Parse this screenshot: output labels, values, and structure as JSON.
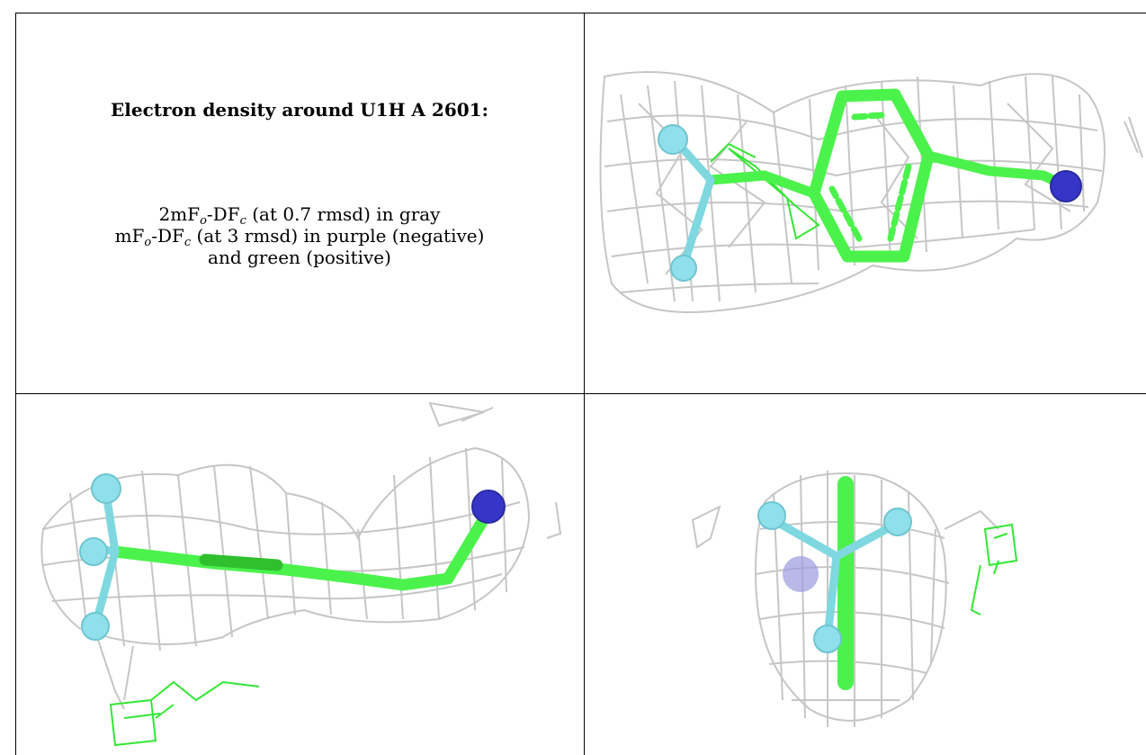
{
  "caption": {
    "title": "Electron density around U1H A 2601:",
    "line1": {
      "pre": "2mF",
      "sub1": "o",
      "mid": "-DF",
      "sub2": "c",
      "post": " (at 0.7 rmsd) in gray"
    },
    "line2": {
      "pre": "mF",
      "sub1": "o",
      "mid": "-DF",
      "sub2": "c",
      "post": " (at 3 rmsd) in purple (negative)"
    },
    "line3": "and green (positive)"
  },
  "colors": {
    "mesh_gray": "#c9c9c9",
    "positive_green": "#2ee62e",
    "ligand_green": "#4cf24c",
    "fluorine_cyan": "#8fe0ea",
    "nitrogen_blue": "#3535c8"
  },
  "panels": {
    "top_right": {
      "view": "ring face-on"
    },
    "bottom_left": {
      "view": "side view"
    },
    "bottom_right": {
      "view": "end-on view"
    }
  }
}
